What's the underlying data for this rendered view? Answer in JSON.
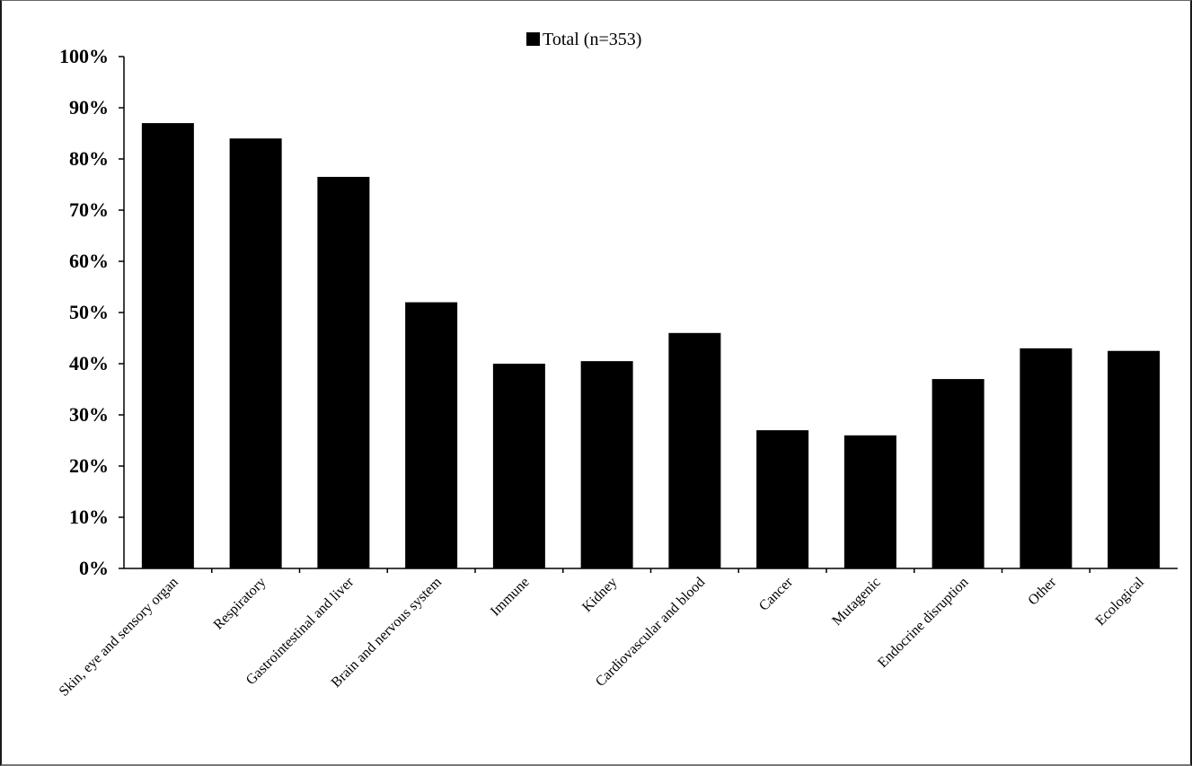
{
  "chart_data": {
    "type": "bar",
    "categories": [
      "Skin, eye and sensory organ",
      "Respiratory",
      "Gastrointestinal and liver",
      "Brain and nervous system",
      "Immune",
      "Kidney",
      "Cardiovascular and blood",
      "Cancer",
      "Mutagenic",
      "Endocrine disruption",
      "Other",
      "Ecological"
    ],
    "series": [
      {
        "name": "Total (n=353)",
        "values": [
          87,
          84,
          76.5,
          52,
          40,
          40.5,
          46,
          27,
          26,
          37,
          43,
          42.5
        ],
        "color": "#000000"
      }
    ],
    "ylim": [
      0,
      100
    ],
    "yticks": [
      "0%",
      "10%",
      "20%",
      "30%",
      "40%",
      "50%",
      "60%",
      "70%",
      "80%",
      "90%",
      "100%"
    ],
    "grid": false,
    "legend_position": "top-center"
  }
}
